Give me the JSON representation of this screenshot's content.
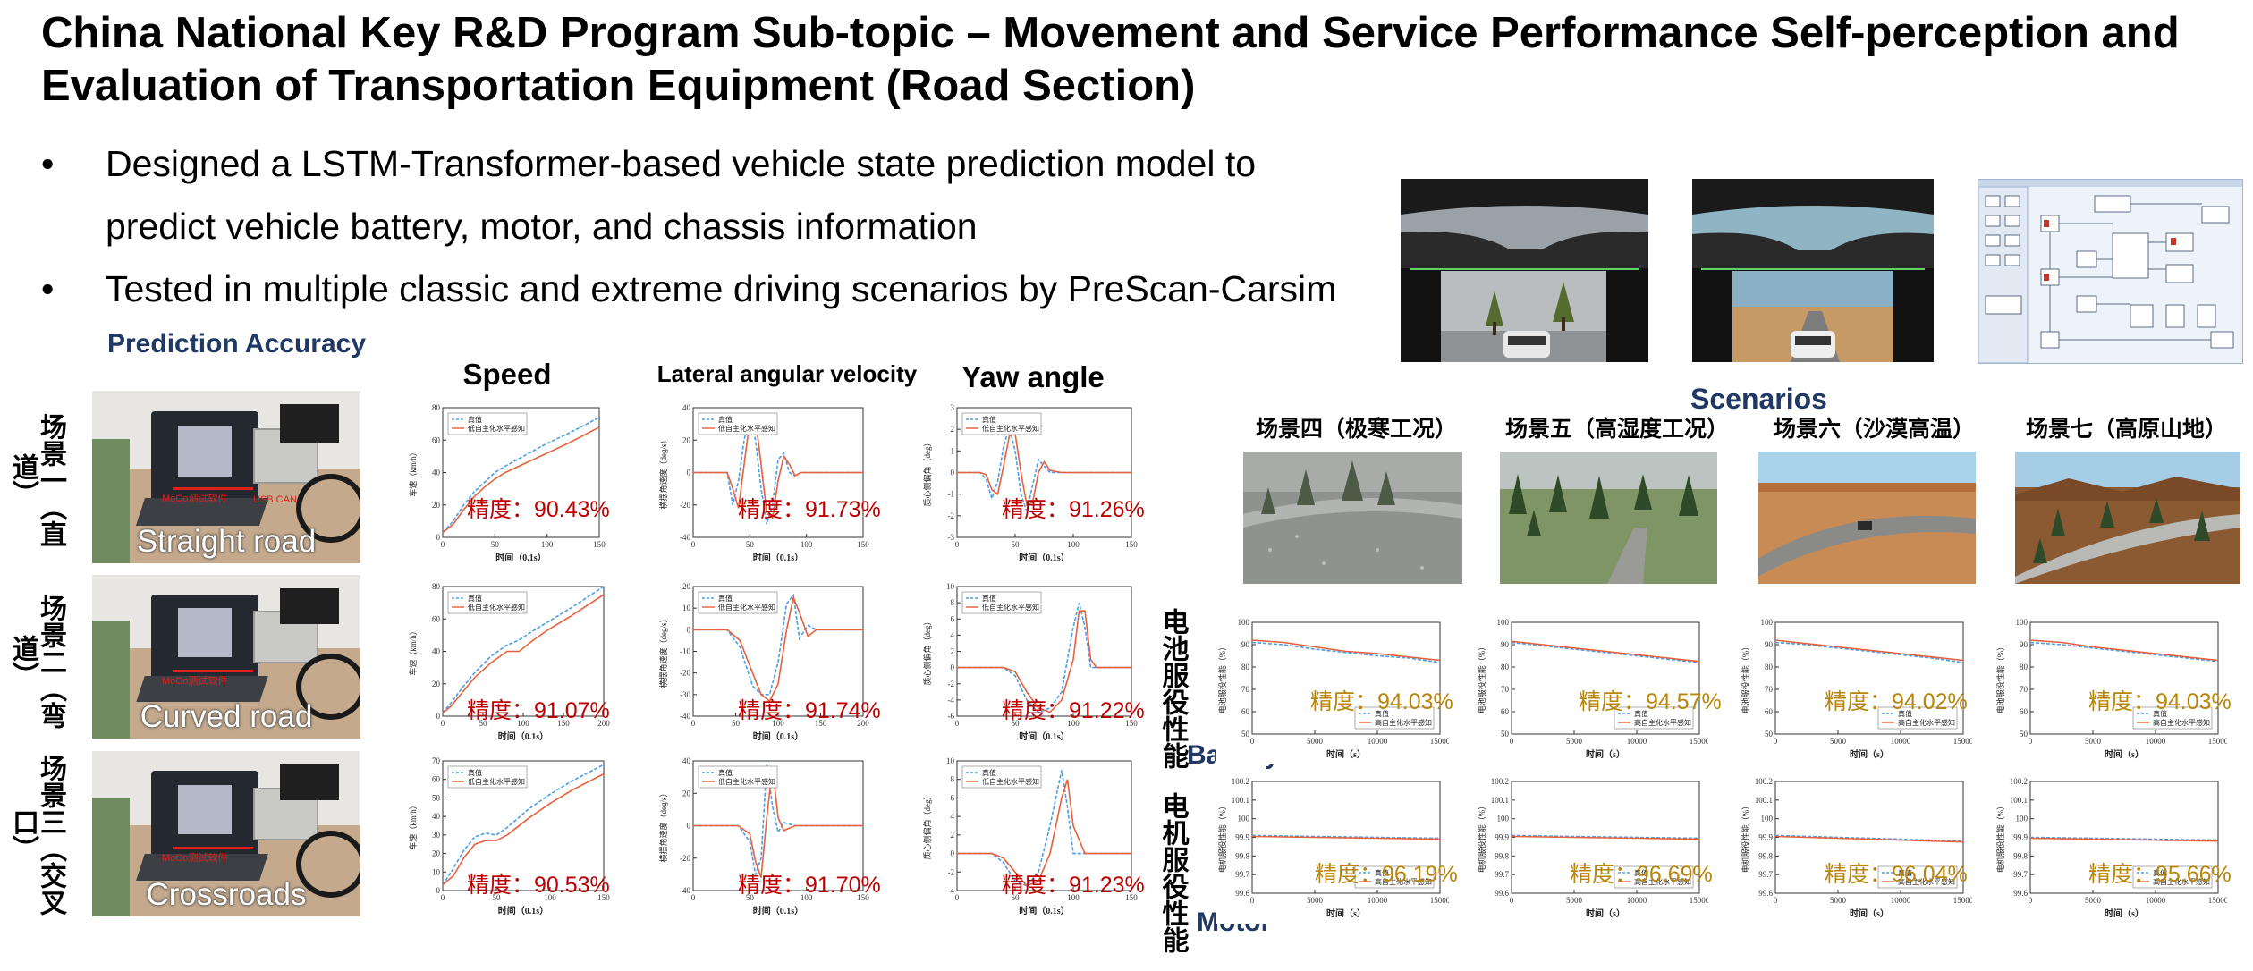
{
  "title": "China National Key R&D Program Sub-topic – Movement and Service Performance Self-perception and Evaluation of Transportation Equipment (Road Section)",
  "bullets": [
    {
      "line1": "Designed a LSTM-Transformer-based vehicle state prediction model to",
      "line2": "predict vehicle battery, motor, and chassis information"
    },
    {
      "line1": "Tested in multiple classic and extreme driving scenarios by PreScan-Carsim"
    }
  ],
  "prediction_accuracy_label": "Prediction Accuracy",
  "scenarios_label": "Scenarios",
  "battery_label": "Battery",
  "motor_label": "Motor",
  "row_side_labels": [
    "场景一（直道）",
    "场景二（弯道）",
    "场景三（交叉口）"
  ],
  "photo_captions": [
    "Straight road",
    "Curved road",
    "Crossroads"
  ],
  "photo_small_labels": [
    "MoCo测试软件",
    "USB CAN"
  ],
  "column_titles": [
    "Speed",
    "Lateral angular velocity",
    "Yaw angle"
  ],
  "scene_titles": [
    "场景四（极寒工况）",
    "场景五（高湿度工况）",
    "场景六（沙漠高温）",
    "场景七（高原山地）"
  ],
  "battery_side_label": "电池服役性能",
  "motor_side_label": "电机服役性能",
  "legend": {
    "true": "真值",
    "pred_left": "低自主化水平感知",
    "pred_right": "高自主化水平感知"
  },
  "chart_data": [
    {
      "type": "line",
      "id": "speed-straight",
      "xlabel": "时间（0.1s）",
      "ylabel": "车速（km/h）",
      "xlim": [
        0,
        150
      ],
      "ylim": [
        0,
        80
      ],
      "xticks": [
        0,
        50,
        100,
        150
      ],
      "yticks": [
        0,
        20,
        40,
        60,
        80
      ],
      "accuracy": "精度：90.43%",
      "x": [
        0,
        10,
        20,
        30,
        40,
        50,
        60,
        80,
        100,
        120,
        150
      ],
      "series": [
        {
          "name": "真值",
          "values": [
            3,
            10,
            20,
            28,
            34,
            40,
            44,
            51,
            58,
            64,
            74
          ]
        },
        {
          "name": "低自主化水平感知",
          "values": [
            3,
            8,
            17,
            25,
            31,
            36,
            40,
            46,
            52,
            58,
            68
          ]
        }
      ]
    },
    {
      "type": "line",
      "id": "lat-straight",
      "xlabel": "时间（0.1s）",
      "ylabel": "横摆角速度（deg/s）",
      "xlim": [
        0,
        150
      ],
      "ylim": [
        -40,
        40
      ],
      "xticks": [
        0,
        50,
        100,
        150
      ],
      "yticks": [
        -40,
        -20,
        0,
        20,
        40
      ],
      "accuracy": "精度：91.73%",
      "x": [
        0,
        30,
        35,
        40,
        45,
        50,
        55,
        60,
        65,
        70,
        75,
        80,
        85,
        90,
        95,
        100,
        150
      ],
      "series": [
        {
          "name": "真值",
          "values": [
            0,
            0,
            -20,
            -5,
            20,
            36,
            20,
            -10,
            -32,
            -20,
            8,
            12,
            0,
            -2,
            0,
            0,
            0
          ]
        },
        {
          "name": "低自主化水平感知",
          "values": [
            0,
            0,
            -10,
            -22,
            5,
            32,
            33,
            5,
            -25,
            -28,
            -5,
            10,
            5,
            -2,
            0,
            0,
            0
          ]
        }
      ]
    },
    {
      "type": "line",
      "id": "yaw-straight",
      "xlabel": "时间（0.1s）",
      "ylabel": "质心侧偏角（deg）",
      "xlim": [
        0,
        150
      ],
      "ylim": [
        -3,
        3
      ],
      "xticks": [
        0,
        50,
        100,
        150
      ],
      "yticks": [
        -3,
        -2,
        -1,
        0,
        1,
        2,
        3
      ],
      "accuracy": "精度：91.26%",
      "x": [
        0,
        20,
        25,
        30,
        35,
        40,
        45,
        50,
        55,
        60,
        65,
        70,
        75,
        80,
        90,
        150
      ],
      "series": [
        {
          "name": "真值",
          "values": [
            0,
            0,
            -0.3,
            -1.2,
            -0.4,
            1.2,
            2.1,
            1.0,
            -1.0,
            -1.8,
            -0.6,
            0.6,
            0.3,
            0,
            0,
            0
          ]
        },
        {
          "name": "低自主化水平感知",
          "values": [
            0,
            0,
            -0.1,
            -0.8,
            -1.0,
            0.3,
            1.7,
            1.8,
            0,
            -1.5,
            -1.4,
            0,
            0.5,
            0.1,
            0,
            0
          ]
        }
      ]
    },
    {
      "type": "line",
      "id": "speed-curved",
      "xlabel": "时间（0.1s）",
      "ylabel": "车速（km/h）",
      "xlim": [
        0,
        200
      ],
      "ylim": [
        0,
        80
      ],
      "xticks": [
        0,
        50,
        100,
        150,
        200
      ],
      "yticks": [
        0,
        20,
        40,
        60,
        80
      ],
      "accuracy": "精度：91.07%",
      "x": [
        0,
        10,
        25,
        40,
        60,
        80,
        95,
        110,
        130,
        160,
        200
      ],
      "series": [
        {
          "name": "真值",
          "values": [
            2,
            8,
            18,
            27,
            37,
            44,
            47,
            52,
            58,
            67,
            80
          ]
        },
        {
          "name": "低自主化水平感知",
          "values": [
            2,
            6,
            15,
            24,
            33,
            40,
            40,
            46,
            53,
            62,
            75
          ]
        }
      ]
    },
    {
      "type": "line",
      "id": "lat-curved",
      "xlabel": "时间（0.1s）",
      "ylabel": "横摆角速度（deg/s）",
      "xlim": [
        0,
        200
      ],
      "ylim": [
        -40,
        20
      ],
      "xticks": [
        0,
        50,
        100,
        150,
        200
      ],
      "yticks": [
        -40,
        -30,
        -20,
        -10,
        0,
        10,
        20
      ],
      "accuracy": "精度：91.74%",
      "x": [
        0,
        40,
        55,
        70,
        80,
        90,
        100,
        110,
        118,
        125,
        135,
        145,
        200
      ],
      "series": [
        {
          "name": "真值",
          "values": [
            0,
            0,
            -8,
            -26,
            -30,
            -30,
            -15,
            12,
            16,
            -4,
            2,
            0,
            0
          ]
        },
        {
          "name": "低自主化水平感知",
          "values": [
            0,
            0,
            -5,
            -20,
            -30,
            -33,
            -25,
            0,
            15,
            8,
            -3,
            0,
            0
          ]
        }
      ]
    },
    {
      "type": "line",
      "id": "yaw-curved",
      "xlabel": "时间（0.1s）",
      "ylabel": "质心侧偏角（deg）",
      "xlim": [
        0,
        150
      ],
      "ylim": [
        -6,
        10
      ],
      "xticks": [
        0,
        50,
        100,
        150
      ],
      "yticks": [
        -6,
        -4,
        -2,
        0,
        2,
        4,
        6,
        8,
        10
      ],
      "accuracy": "精度：91.22%",
      "x": [
        0,
        40,
        50,
        60,
        70,
        80,
        90,
        100,
        105,
        110,
        115,
        120,
        150
      ],
      "series": [
        {
          "name": "真值",
          "values": [
            0,
            0,
            -1,
            -4,
            -5.5,
            -5,
            -3,
            5,
            8,
            5,
            0,
            0,
            0
          ]
        },
        {
          "name": "低自主化水平感知",
          "values": [
            0,
            0,
            -0.5,
            -3,
            -5,
            -5.5,
            -4,
            1,
            7,
            7,
            1,
            0,
            0
          ]
        }
      ]
    },
    {
      "type": "line",
      "id": "speed-cross",
      "xlabel": "时间（0.1s）",
      "ylabel": "车速（km/h）",
      "xlim": [
        0,
        150
      ],
      "ylim": [
        0,
        70
      ],
      "xticks": [
        0,
        50,
        100,
        150
      ],
      "yticks": [
        0,
        10,
        20,
        30,
        40,
        50,
        60,
        70
      ],
      "accuracy": "精度：90.53%",
      "x": [
        0,
        10,
        20,
        30,
        40,
        50,
        60,
        80,
        100,
        120,
        150
      ],
      "series": [
        {
          "name": "真值",
          "values": [
            3,
            12,
            22,
            29,
            31,
            30,
            34,
            44,
            52,
            59,
            68
          ]
        },
        {
          "name": "低自主化水平感知",
          "values": [
            3,
            8,
            18,
            25,
            27,
            27,
            30,
            39,
            47,
            54,
            63
          ]
        }
      ]
    },
    {
      "type": "line",
      "id": "lat-cross",
      "xlabel": "时间（0.1s）",
      "ylabel": "横摆角速度（deg/s）",
      "xlim": [
        0,
        150
      ],
      "ylim": [
        -40,
        40
      ],
      "xticks": [
        0,
        50,
        100,
        150
      ],
      "yticks": [
        -40,
        -20,
        0,
        20,
        40
      ],
      "accuracy": "精度：91.70%",
      "x": [
        0,
        40,
        50,
        55,
        60,
        65,
        70,
        75,
        80,
        90,
        150
      ],
      "series": [
        {
          "name": "真值",
          "values": [
            0,
            0,
            -10,
            -30,
            -20,
            38,
            12,
            -4,
            2,
            0,
            0
          ]
        },
        {
          "name": "低自主化水平感知",
          "values": [
            0,
            0,
            -5,
            -22,
            -32,
            5,
            36,
            5,
            -3,
            0,
            0
          ]
        }
      ]
    },
    {
      "type": "line",
      "id": "yaw-cross",
      "xlabel": "时间（0.1s）",
      "ylabel": "质心侧偏角（deg）",
      "xlim": [
        0,
        150
      ],
      "ylim": [
        -4,
        10
      ],
      "xticks": [
        0,
        50,
        100,
        150
      ],
      "yticks": [
        -4,
        -2,
        0,
        2,
        4,
        6,
        8,
        10
      ],
      "accuracy": "精度：91.23%",
      "x": [
        0,
        30,
        40,
        50,
        60,
        70,
        80,
        90,
        95,
        100,
        110,
        150
      ],
      "series": [
        {
          "name": "真值",
          "values": [
            0,
            0,
            -1,
            -3,
            -3.5,
            -2,
            3,
            9,
            5,
            0,
            0,
            0
          ]
        },
        {
          "name": "低自主化水平感知",
          "values": [
            0,
            0,
            -0.5,
            -2,
            -3.5,
            -3,
            0,
            6,
            8,
            3,
            0,
            0
          ]
        }
      ]
    },
    {
      "type": "line",
      "id": "battery-4",
      "xlabel": "时间（s）",
      "ylabel": "电池服役性能（%）",
      "xlim": [
        0,
        15000
      ],
      "ylim": [
        50,
        100
      ],
      "xticks": [
        0,
        5000,
        10000,
        15000
      ],
      "yticks": [
        50,
        60,
        70,
        80,
        90,
        100
      ],
      "accuracy": "精度：94.03%",
      "x": [
        0,
        2500,
        5000,
        7500,
        10000,
        12500,
        15000
      ],
      "series": [
        {
          "name": "真值",
          "values": [
            91,
            90,
            88,
            86.5,
            85,
            84,
            82
          ]
        },
        {
          "name": "高自主化水平感知",
          "values": [
            92,
            91,
            89,
            87,
            86,
            84.5,
            83
          ]
        }
      ]
    },
    {
      "type": "line",
      "id": "battery-5",
      "xlabel": "时间（s）",
      "ylabel": "电池服役性能（%）",
      "xlim": [
        0,
        15000
      ],
      "ylim": [
        50,
        100
      ],
      "xticks": [
        0,
        5000,
        10000,
        15000
      ],
      "yticks": [
        50,
        60,
        70,
        80,
        90,
        100
      ],
      "accuracy": "精度：94.57%",
      "x": [
        0,
        2500,
        5000,
        7500,
        10000,
        12500,
        15000
      ],
      "series": [
        {
          "name": "真值",
          "values": [
            91,
            89.5,
            88,
            86.5,
            85,
            83.5,
            82
          ]
        },
        {
          "name": "高自主化水平感知",
          "values": [
            91.5,
            90,
            88.5,
            87,
            85.5,
            84,
            82.5
          ]
        }
      ]
    },
    {
      "type": "line",
      "id": "battery-6",
      "xlabel": "时间（s）",
      "ylabel": "电池服役性能（%）",
      "xlim": [
        0,
        15000
      ],
      "ylim": [
        50,
        100
      ],
      "xticks": [
        0,
        5000,
        10000,
        15000
      ],
      "yticks": [
        50,
        60,
        70,
        80,
        90,
        100
      ],
      "accuracy": "精度：94.02%",
      "x": [
        0,
        2500,
        5000,
        7500,
        10000,
        12500,
        15000
      ],
      "series": [
        {
          "name": "真值",
          "values": [
            91,
            90,
            88.5,
            87,
            85.5,
            84,
            82
          ]
        },
        {
          "name": "高自主化水平感知",
          "values": [
            92,
            90.5,
            89,
            87.5,
            86,
            84.5,
            83
          ]
        }
      ]
    },
    {
      "type": "line",
      "id": "battery-7",
      "xlabel": "时间（s）",
      "ylabel": "电池服役性能（%）",
      "xlim": [
        0,
        15000
      ],
      "ylim": [
        50,
        100
      ],
      "xticks": [
        0,
        5000,
        10000,
        15000
      ],
      "yticks": [
        50,
        60,
        70,
        80,
        90,
        100
      ],
      "accuracy": "精度：94.03%",
      "x": [
        0,
        2500,
        5000,
        7500,
        10000,
        12500,
        15000
      ],
      "series": [
        {
          "name": "真值",
          "values": [
            91,
            90,
            88.5,
            87,
            85.5,
            84,
            82.5
          ]
        },
        {
          "name": "高自主化水平感知",
          "values": [
            92,
            91,
            89,
            87.5,
            86,
            84.5,
            83
          ]
        }
      ]
    },
    {
      "type": "line",
      "id": "motor-4",
      "xlabel": "时间（s）",
      "ylabel": "电机服役性能（%）",
      "xlim": [
        0,
        15000
      ],
      "ylim": [
        99.6,
        100.2
      ],
      "xticks": [
        0,
        5000,
        10000,
        15000
      ],
      "yticks": [
        99.6,
        99.7,
        99.8,
        99.9,
        100,
        100.1,
        100.2
      ],
      "accuracy": "精度：96.19%",
      "x": [
        0,
        5000,
        10000,
        15000
      ],
      "series": [
        {
          "name": "真值",
          "values": [
            99.91,
            99.905,
            99.9,
            99.895
          ]
        },
        {
          "name": "高自主化水平感知",
          "values": [
            99.905,
            99.9,
            99.895,
            99.89
          ]
        }
      ]
    },
    {
      "type": "line",
      "id": "motor-5",
      "xlabel": "时间（s）",
      "ylabel": "电机服役性能（%）",
      "xlim": [
        0,
        15000
      ],
      "ylim": [
        99.6,
        100.2
      ],
      "xticks": [
        0,
        5000,
        10000,
        15000
      ],
      "yticks": [
        99.6,
        99.7,
        99.8,
        99.9,
        100,
        100.1,
        100.2
      ],
      "accuracy": "精度：96.69%",
      "x": [
        0,
        5000,
        10000,
        15000
      ],
      "series": [
        {
          "name": "真值",
          "values": [
            99.91,
            99.905,
            99.9,
            99.895
          ]
        },
        {
          "name": "高自主化水平感知",
          "values": [
            99.905,
            99.9,
            99.895,
            99.89
          ]
        }
      ]
    },
    {
      "type": "line",
      "id": "motor-6",
      "xlabel": "时间（s）",
      "ylabel": "电机服役性能（%）",
      "xlim": [
        0,
        15000
      ],
      "ylim": [
        99.6,
        100.2
      ],
      "xticks": [
        0,
        5000,
        10000,
        15000
      ],
      "yticks": [
        99.6,
        99.7,
        99.8,
        99.9,
        100,
        100.1,
        100.2
      ],
      "accuracy": "精度：96.04%",
      "x": [
        0,
        5000,
        10000,
        15000
      ],
      "series": [
        {
          "name": "真值",
          "values": [
            99.91,
            99.9,
            99.89,
            99.88
          ]
        },
        {
          "name": "高自主化水平感知",
          "values": [
            99.905,
            99.895,
            99.885,
            99.875
          ]
        }
      ]
    },
    {
      "type": "line",
      "id": "motor-7",
      "xlabel": "时间（s）",
      "ylabel": "电机服役性能（%）",
      "xlim": [
        0,
        15000
      ],
      "ylim": [
        99.6,
        100.2
      ],
      "xticks": [
        0,
        5000,
        10000,
        15000
      ],
      "yticks": [
        99.6,
        99.7,
        99.8,
        99.9,
        100,
        100.1,
        100.2
      ],
      "accuracy": "精度：95.66%",
      "x": [
        0,
        5000,
        10000,
        15000
      ],
      "series": [
        {
          "name": "真值",
          "values": [
            99.9,
            99.895,
            99.89,
            99.885
          ]
        },
        {
          "name": "高自主化水平感知",
          "values": [
            99.895,
            99.89,
            99.885,
            99.88
          ]
        }
      ]
    }
  ],
  "colors": {
    "true_line": "#4a9ee8",
    "pred_line": "#e8603c",
    "accuracy_red": "#c00000",
    "accuracy_gold": "#b8860b",
    "heading_blue": "#1f3864"
  }
}
